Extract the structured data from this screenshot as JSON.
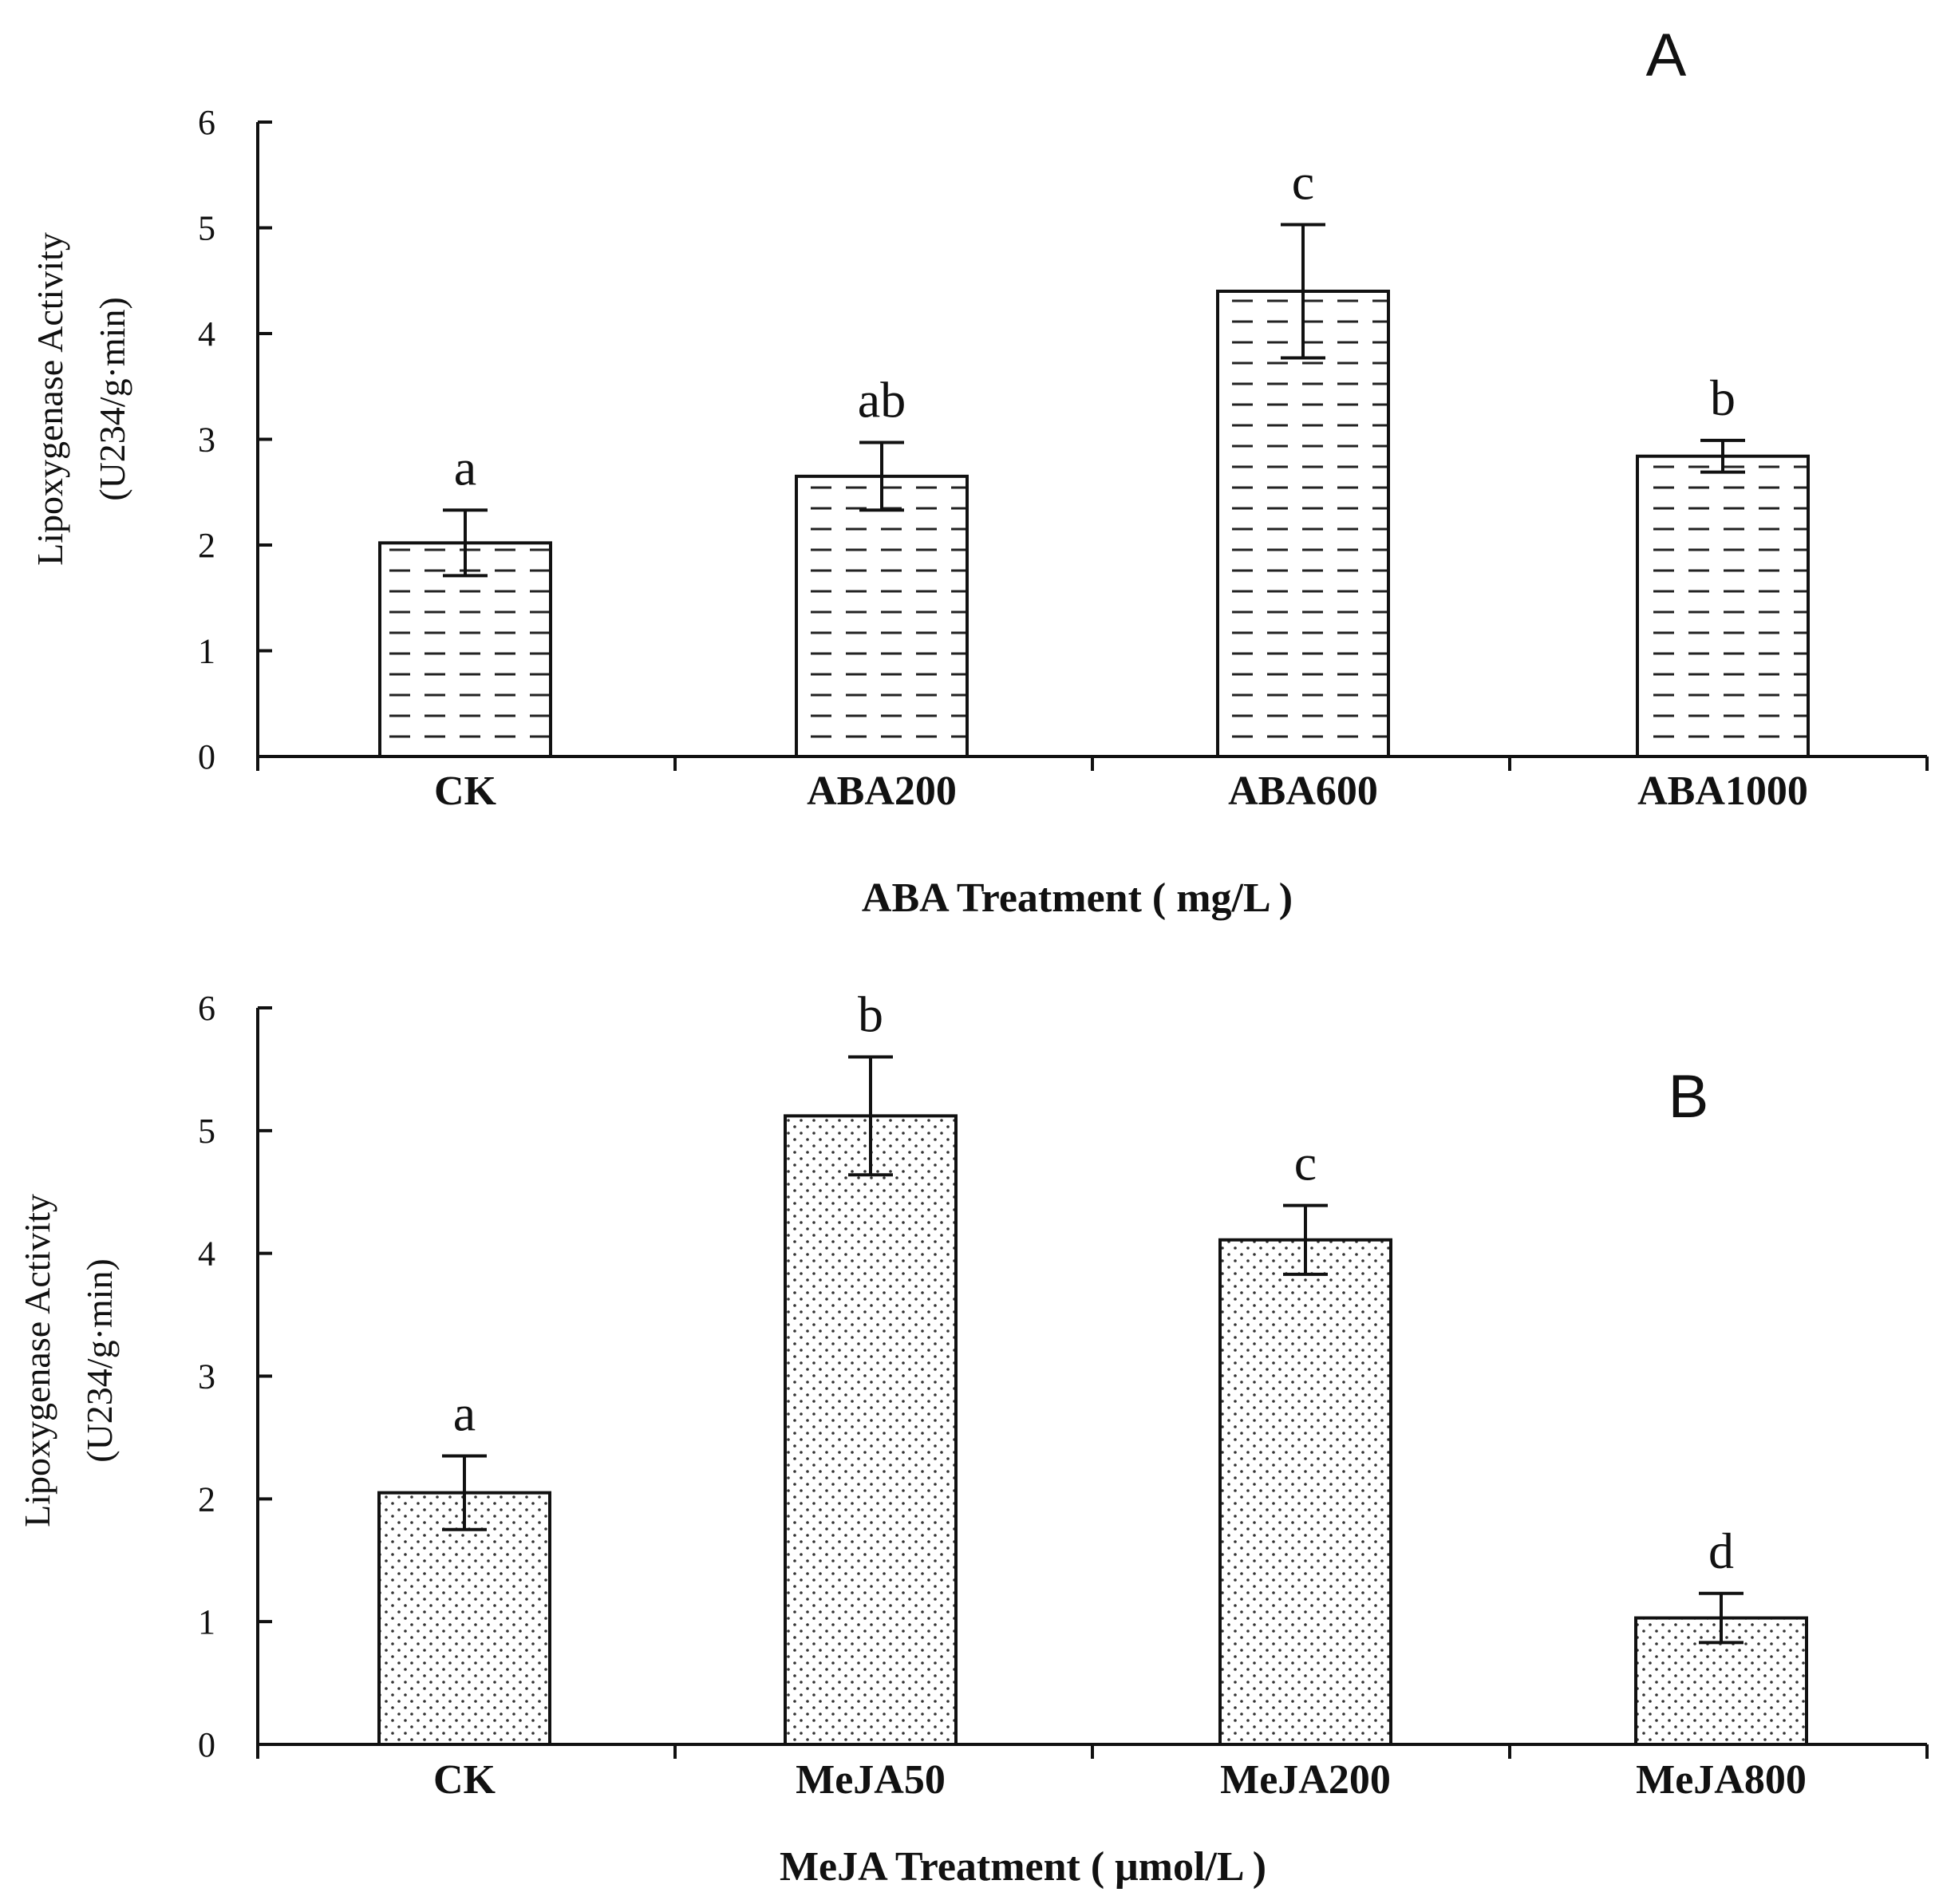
{
  "chart_data": [
    {
      "type": "bar",
      "panel": "A",
      "categories": [
        "CK",
        "ABA200",
        "ABA600",
        "ABA1000"
      ],
      "values": [
        2.02,
        2.65,
        4.4,
        2.84
      ],
      "errors": [
        0.31,
        0.32,
        0.63,
        0.15
      ],
      "significance": [
        "a",
        "ab",
        "c",
        "b"
      ],
      "xlabel": "ABA Treatment ( mg/L )",
      "ylabel_line1": "Lipoxygenase Activity",
      "ylabel_line2": "(U234/g·min)",
      "yticks": [
        "0",
        "1",
        "2",
        "3",
        "4",
        "5",
        "6"
      ],
      "ylim": [
        0,
        6
      ],
      "fill_pattern": "dashes",
      "grid": false
    },
    {
      "type": "bar",
      "panel": "B",
      "categories": [
        "CK",
        "MeJA50",
        "MeJA200",
        "MeJA800"
      ],
      "values": [
        2.05,
        5.12,
        4.11,
        1.03
      ],
      "errors": [
        0.3,
        0.48,
        0.28,
        0.2
      ],
      "significance": [
        "a",
        "b",
        "c",
        "d"
      ],
      "xlabel": "MeJA Treatment ( μmol/L )",
      "ylabel_line1": "Lipoxygenase Activity",
      "ylabel_line2": "(U234/g·min)",
      "yticks": [
        "0",
        "1",
        "2",
        "3",
        "4",
        "5",
        "6"
      ],
      "ylim": [
        0,
        6
      ],
      "fill_pattern": "dots",
      "grid": false
    }
  ]
}
